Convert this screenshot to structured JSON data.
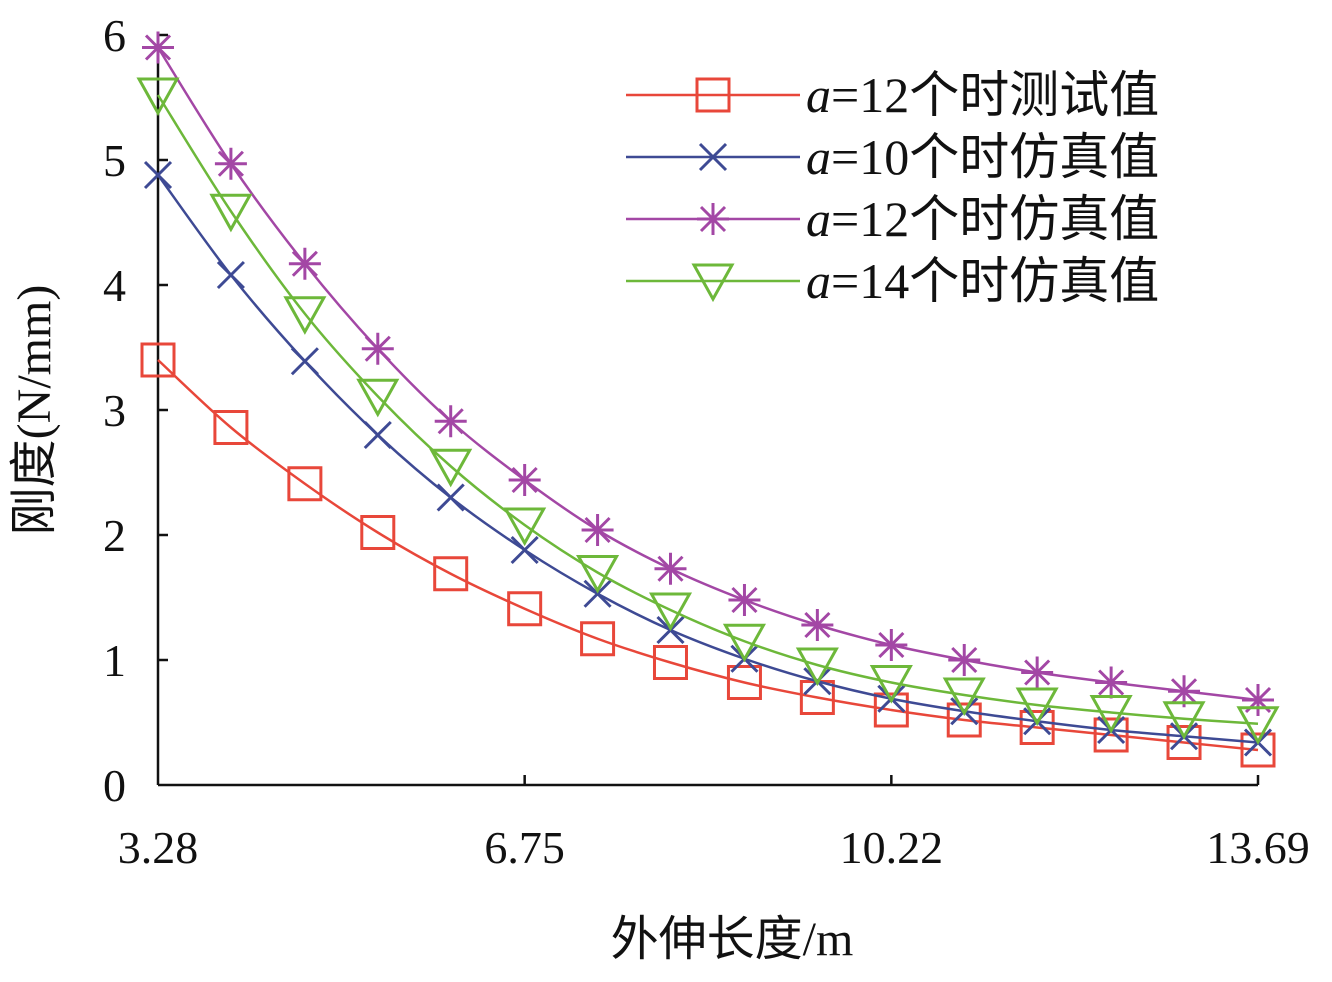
{
  "chart_data": {
    "type": "line",
    "xlabel": "外伸长度/m",
    "ylabel": "刚度(N/mm)",
    "xlim": [
      3.28,
      13.69
    ],
    "ylim": [
      0,
      6
    ],
    "x_ticks": [
      "3.28",
      "6.75",
      "10.22",
      "13.69"
    ],
    "y_ticks": [
      "0",
      "1",
      "2",
      "3",
      "4",
      "5",
      "6"
    ],
    "grid": false,
    "legend_position": "top-right",
    "x": [
      3.28,
      3.97,
      4.67,
      5.36,
      6.05,
      6.75,
      7.44,
      8.13,
      8.83,
      9.52,
      10.22,
      10.91,
      11.6,
      12.3,
      12.99,
      13.69
    ],
    "series": [
      {
        "name": "a=12个时测试值",
        "legend_var": "a",
        "legend_rest": "=12个时测试值",
        "color": "#e8473a",
        "marker": "square",
        "values": [
          3.4,
          2.86,
          2.41,
          2.02,
          1.69,
          1.41,
          1.17,
          0.98,
          0.82,
          0.7,
          0.6,
          0.52,
          0.46,
          0.4,
          0.34,
          0.28
        ]
      },
      {
        "name": "a=10个时仿真值",
        "legend_var": "a",
        "legend_rest": "=10个时仿真值",
        "color": "#3e4a94",
        "marker": "x",
        "values": [
          4.88,
          4.08,
          3.39,
          2.8,
          2.3,
          1.88,
          1.53,
          1.24,
          1.01,
          0.83,
          0.69,
          0.59,
          0.51,
          0.44,
          0.39,
          0.34
        ]
      },
      {
        "name": "a=12个时仿真值",
        "legend_var": "a",
        "legend_rest": "=12个时仿真值",
        "color": "#a347a5",
        "marker": "asterisk",
        "values": [
          5.9,
          4.97,
          4.17,
          3.49,
          2.91,
          2.44,
          2.04,
          1.73,
          1.48,
          1.28,
          1.12,
          1.0,
          0.9,
          0.82,
          0.75,
          0.68
        ]
      },
      {
        "name": "a=14个时仿真值",
        "legend_var": "a",
        "legend_rest": "=14个时仿真值",
        "color": "#6db83a",
        "marker": "triangle-down",
        "values": [
          5.52,
          4.59,
          3.77,
          3.11,
          2.55,
          2.08,
          1.7,
          1.4,
          1.15,
          0.96,
          0.82,
          0.72,
          0.64,
          0.58,
          0.53,
          0.49
        ]
      }
    ]
  }
}
